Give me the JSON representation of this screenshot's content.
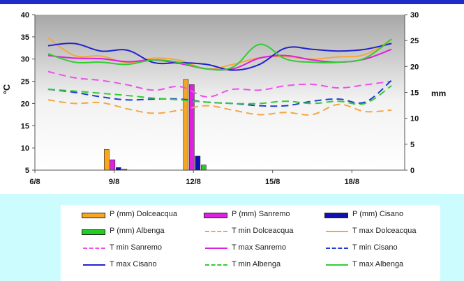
{
  "chart_data": {
    "type": "line",
    "ylabel_left": "°C",
    "ylabel_right": "mm",
    "ylim_left": [
      5,
      40
    ],
    "ylim_right": [
      0,
      30
    ],
    "yticks_left": [
      "5",
      "10",
      "15",
      "20",
      "25",
      "30",
      "35",
      "40"
    ],
    "yticks_right": [
      "0",
      "5",
      "10",
      "15",
      "20",
      "25",
      "30"
    ],
    "xlim": [
      6,
      20
    ],
    "x_ticks": [
      {
        "x": 6,
        "label": "6/8"
      },
      {
        "x": 9,
        "label": "9/8"
      },
      {
        "x": 12,
        "label": "12/8"
      },
      {
        "x": 15,
        "label": "15/8"
      },
      {
        "x": 18,
        "label": "18/8"
      }
    ],
    "bars": [
      {
        "name": "P (mm) Dolceacqua",
        "color": "#f5a623",
        "values": [
          {
            "day": 9,
            "mm": 4
          },
          {
            "day": 12,
            "mm": 17.5
          }
        ]
      },
      {
        "name": "P (mm) Sanremo",
        "color": "#e020e0",
        "values": [
          {
            "day": 9,
            "mm": 2
          },
          {
            "day": 12,
            "mm": 16.5
          }
        ]
      },
      {
        "name": "P (mm) Cisano",
        "color": "#1010b0",
        "values": [
          {
            "day": 9,
            "mm": 0.5
          },
          {
            "day": 12,
            "mm": 2.7
          }
        ]
      },
      {
        "name": "P (mm) Albenga",
        "color": "#22cc22",
        "values": [
          {
            "day": 9,
            "mm": 0.2
          },
          {
            "day": 12,
            "mm": 1
          }
        ]
      }
    ],
    "series": [
      {
        "name": "T min Dolceacqua",
        "color": "#f5a640",
        "dash": true,
        "x": [
          6.5,
          7.5,
          8.5,
          9.5,
          10.5,
          11.5,
          12.5,
          13.5,
          14.5,
          15.5,
          16.5,
          17.5,
          18.5,
          19.5
        ],
        "y": [
          20.8,
          20.0,
          20.2,
          18.8,
          17.8,
          18.5,
          19.5,
          18.5,
          17.5,
          18.0,
          17.5,
          19.8,
          18.2,
          18.5
        ]
      },
      {
        "name": "T max Dolceacqua",
        "color": "#f5a640",
        "dash": false,
        "x": [
          6.5,
          7.5,
          8.5,
          9.5,
          10.5,
          11.5,
          12.5,
          13.5,
          14.5,
          15.5,
          16.5,
          17.5,
          18.5,
          19.5
        ],
        "y": [
          34.8,
          30.8,
          30.7,
          29.2,
          30.2,
          29.7,
          27.8,
          28.8,
          30.3,
          30.5,
          30.0,
          30.5,
          31.0,
          34.5
        ]
      },
      {
        "name": "T min Sanremo",
        "color": "#ee50ee",
        "dash": true,
        "x": [
          6.5,
          7.5,
          8.5,
          9.5,
          10.5,
          11.5,
          12.5,
          13.5,
          14.5,
          15.5,
          16.5,
          17.5,
          18.5,
          19.5
        ],
        "y": [
          27.2,
          25.8,
          25.2,
          24.2,
          23.0,
          23.8,
          21.5,
          23.2,
          23.0,
          24.0,
          24.3,
          23.5,
          24.2,
          25.0
        ]
      },
      {
        "name": "T max Sanremo",
        "color": "#dd20dd",
        "dash": false,
        "x": [
          6.5,
          7.5,
          8.5,
          9.5,
          10.5,
          11.5,
          12.5,
          13.5,
          14.5,
          15.5,
          16.5,
          17.5,
          18.5,
          19.5
        ],
        "y": [
          30.8,
          30.2,
          30.1,
          29.4,
          29.8,
          29.0,
          27.8,
          27.8,
          30.2,
          30.8,
          29.8,
          29.3,
          30.0,
          32.2
        ]
      },
      {
        "name": "T min Cisano",
        "color": "#1e3ccc",
        "dash": true,
        "x": [
          6.5,
          7.5,
          8.5,
          9.5,
          10.5,
          11.5,
          12.5,
          13.5,
          14.5,
          15.5,
          16.5,
          17.5,
          18.5,
          19.5
        ],
        "y": [
          23.2,
          22.5,
          21.5,
          20.8,
          21.0,
          21.0,
          20.3,
          20.0,
          19.5,
          19.5,
          20.5,
          21.0,
          20.3,
          25.2
        ]
      },
      {
        "name": "T max Cisano",
        "color": "#2222cc",
        "dash": false,
        "x": [
          6.5,
          7.5,
          8.5,
          9.5,
          10.5,
          11.5,
          12.5,
          13.5,
          14.5,
          15.5,
          16.5,
          17.5,
          18.5,
          19.5
        ],
        "y": [
          33.0,
          33.5,
          31.8,
          32.0,
          29.2,
          29.2,
          28.8,
          27.5,
          28.8,
          32.5,
          32.2,
          31.8,
          32.2,
          33.5
        ]
      },
      {
        "name": "T min Albenga",
        "color": "#33cc33",
        "dash": true,
        "x": [
          6.5,
          7.5,
          8.5,
          9.5,
          10.5,
          11.5,
          12.5,
          13.5,
          14.5,
          15.5,
          16.5,
          17.5,
          18.5,
          19.5
        ],
        "y": [
          23.2,
          22.8,
          22.3,
          21.8,
          21.2,
          20.8,
          20.3,
          20.0,
          20.0,
          20.5,
          20.0,
          20.5,
          20.0,
          24.0
        ]
      },
      {
        "name": "T max Albenga",
        "color": "#33cc33",
        "dash": false,
        "x": [
          6.5,
          7.5,
          8.5,
          9.5,
          10.5,
          11.5,
          12.5,
          13.5,
          14.5,
          15.5,
          16.5,
          17.5,
          18.5,
          19.5
        ],
        "y": [
          31.2,
          29.3,
          29.3,
          28.8,
          29.8,
          29.2,
          27.8,
          28.2,
          33.3,
          30.0,
          29.3,
          29.3,
          30.2,
          34.5
        ]
      }
    ],
    "legend": [
      {
        "label": "P (mm) Dolceacqua",
        "kind": "bar",
        "color": "#f5a623"
      },
      {
        "label": "P (mm) Sanremo",
        "kind": "bar",
        "color": "#e020e0"
      },
      {
        "label": "P (mm) Cisano",
        "kind": "bar",
        "color": "#1010b0"
      },
      {
        "label": "P (mm) Albenga",
        "kind": "bar",
        "color": "#22cc22"
      },
      {
        "label": "T min Dolceacqua",
        "kind": "dash",
        "color": "#f5a640"
      },
      {
        "label": "T max Dolceacqua",
        "kind": "line",
        "color": "#f5a640"
      },
      {
        "label": "T min Sanremo",
        "kind": "dash",
        "color": "#ee50ee"
      },
      {
        "label": "T max Sanremo",
        "kind": "line",
        "color": "#dd20dd"
      },
      {
        "label": "T min Cisano",
        "kind": "dash",
        "color": "#1e3ccc"
      },
      {
        "label": "T max Cisano",
        "kind": "line",
        "color": "#2222cc"
      },
      {
        "label": "T min Albenga",
        "kind": "dash",
        "color": "#33cc33"
      },
      {
        "label": "T max Albenga",
        "kind": "line",
        "color": "#33cc33"
      }
    ],
    "grid": false,
    "legend_position": "bottom"
  }
}
